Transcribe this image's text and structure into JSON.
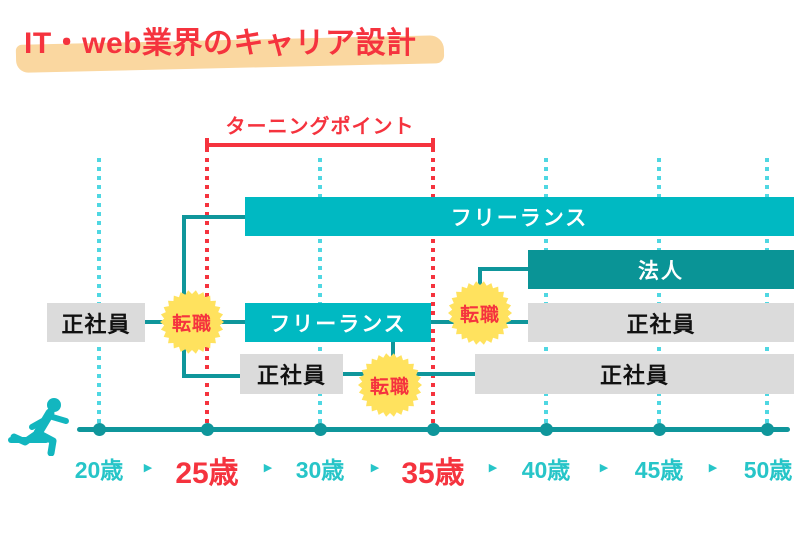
{
  "title": {
    "text": "IT・web業界のキャリア設計"
  },
  "turning_point": {
    "label": "ターニングポイント"
  },
  "career_paths": {
    "freelance_top": "フリーランス",
    "corporation": "法人",
    "employee_start": "正社員",
    "freelance_mid": "フリーランス",
    "employee_mid_right": "正社員",
    "employee_row3_left": "正社員",
    "employee_row3_right": "正社員"
  },
  "badges": {
    "job_change_1": "転職",
    "job_change_2": "転職",
    "job_change_3": "転職"
  },
  "timeline": {
    "ages": [
      {
        "label": "20歳",
        "emphasis": false
      },
      {
        "label": "25歳",
        "emphasis": true
      },
      {
        "label": "30歳",
        "emphasis": false
      },
      {
        "label": "35歳",
        "emphasis": true
      },
      {
        "label": "40歳",
        "emphasis": false
      },
      {
        "label": "45歳",
        "emphasis": false
      },
      {
        "label": "50歳",
        "emphasis": false
      }
    ]
  },
  "icons": {
    "arrow_right": "▶",
    "runner": "running-person-icon"
  },
  "colors": {
    "teal_bar": "#00b9c2",
    "teal_dark_bar": "#0a9496",
    "teal_line": "#0f969b",
    "teal_dotted": "#4fd7e2",
    "teal_text": "#27c5c8",
    "red": "#f5333e",
    "yellow_badge": "#ffe25e",
    "gray_bar": "#dbdbdb",
    "highlight_orange": "#fad7a0"
  }
}
